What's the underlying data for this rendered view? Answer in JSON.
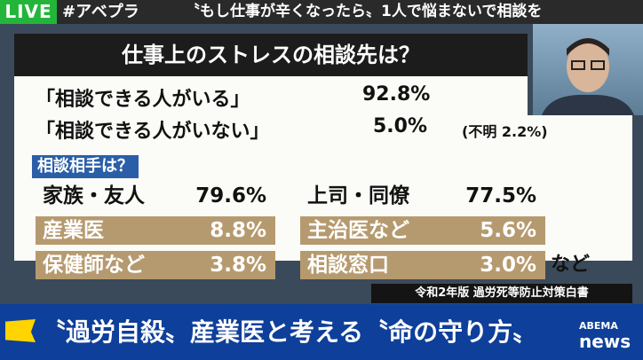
{
  "top_bar": {
    "live": "LIVE",
    "hashtag": "#アベプラ",
    "ticker": "〝もし仕事が辛くなったら〟1人で悩まないで相談を"
  },
  "board": {
    "title": "仕事上のストレスの相談先は？",
    "summary": [
      {
        "label": "「相談できる人がいる」",
        "value": "92.8%"
      },
      {
        "label": "「相談できる人がいない」",
        "value": "5.0%",
        "note": "(不明 2.2%)"
      }
    ],
    "sub_header": "相談相手は？",
    "breakdown_left": [
      {
        "label": "家族・友人",
        "value": "79.6%"
      },
      {
        "label": "産業医",
        "value": "8.8%"
      },
      {
        "label": "保健師など",
        "value": "3.8%"
      }
    ],
    "breakdown_right": [
      {
        "label": "上司・同僚",
        "value": "77.5%"
      },
      {
        "label": "主治医など",
        "value": "5.6%"
      },
      {
        "label": "相談窓口",
        "value": "3.0%"
      }
    ],
    "trailing": "など",
    "source": "令和2年版 過労死等防止対策白書"
  },
  "bottom": {
    "caption": "〝過労自殺〟産業医と考える〝命の守り方〟",
    "logo_top": "ABEMA",
    "logo_bottom": "news"
  },
  "colors": {
    "live_green": "#23b53a",
    "tan": "#b69a6f",
    "sub_header_blue": "#2a5fa8",
    "bottom_blue": "#0e3f9a"
  }
}
